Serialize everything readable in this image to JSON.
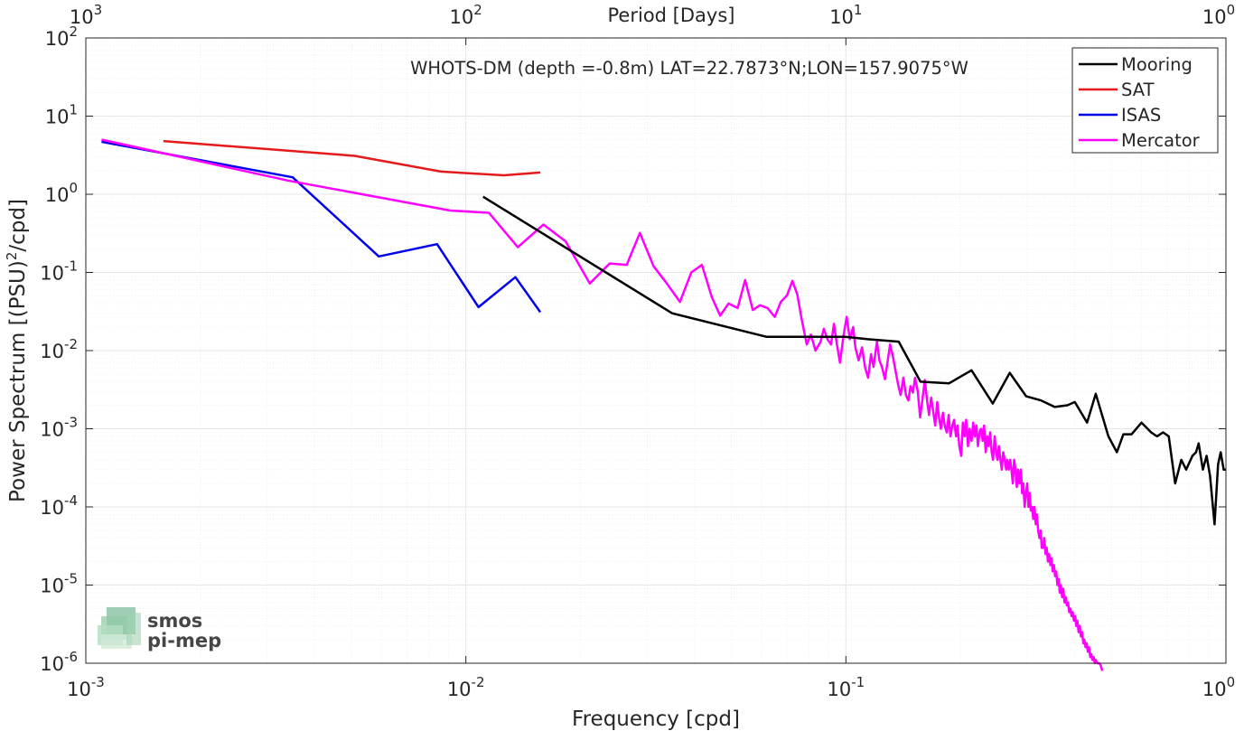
{
  "chart_data": {
    "type": "line",
    "title": "WHOTS-DM (depth =-0.8m) LAT=22.7873°N;LON=157.9075°W",
    "xlabel": "Frequency [cpd]",
    "ylabel_main": "Power Spectrum [(PSU)",
    "ylabel_sup": "2",
    "ylabel_end": "/cpd]",
    "top_axis_label": "Period [Days]",
    "x_scale": "log",
    "y_scale": "log",
    "xlim": [
      0.001,
      1
    ],
    "ylim": [
      1e-06,
      100
    ],
    "grid": true,
    "legend_position": "top-right",
    "x_ticks": [
      {
        "value": 0.001,
        "base": "10",
        "exp": "-3"
      },
      {
        "value": 0.01,
        "base": "10",
        "exp": "-2"
      },
      {
        "value": 0.1,
        "base": "10",
        "exp": "-1"
      },
      {
        "value": 1,
        "base": "10",
        "exp": "0"
      }
    ],
    "y_ticks": [
      {
        "value": 1e-06,
        "base": "10",
        "exp": "-6"
      },
      {
        "value": 1e-05,
        "base": "10",
        "exp": "-5"
      },
      {
        "value": 0.0001,
        "base": "10",
        "exp": "-4"
      },
      {
        "value": 0.001,
        "base": "10",
        "exp": "-3"
      },
      {
        "value": 0.01,
        "base": "10",
        "exp": "-2"
      },
      {
        "value": 0.1,
        "base": "10",
        "exp": "-1"
      },
      {
        "value": 1,
        "base": "10",
        "exp": "0"
      },
      {
        "value": 10,
        "base": "10",
        "exp": "1"
      },
      {
        "value": 100,
        "base": "10",
        "exp": "2"
      }
    ],
    "top_ticks": [
      {
        "value": 0.001,
        "base": "10",
        "exp": "3"
      },
      {
        "value": 0.01,
        "base": "10",
        "exp": "2"
      },
      {
        "value": 0.1,
        "base": "10",
        "exp": "1"
      },
      {
        "value": 1,
        "base": "10",
        "exp": "0"
      }
    ],
    "series": [
      {
        "name": "Mooring",
        "color": "#000000",
        "points": [
          [
            0.0111,
            0.93
          ],
          [
            0.0349,
            0.03
          ],
          [
            0.0619,
            0.015
          ],
          [
            0.0996,
            0.015
          ],
          [
            0.1142,
            0.014
          ],
          [
            0.1377,
            0.013
          ],
          [
            0.1571,
            0.004
          ],
          [
            0.1866,
            0.0038
          ],
          [
            0.2141,
            0.0056
          ],
          [
            0.2435,
            0.0021
          ],
          [
            0.2699,
            0.0052
          ],
          [
            0.2981,
            0.0026
          ],
          [
            0.3264,
            0.0023
          ],
          [
            0.3545,
            0.0019
          ],
          [
            0.3828,
            0.002
          ],
          [
            0.4003,
            0.0022
          ],
          [
            0.4311,
            0.0012
          ],
          [
            0.4545,
            0.0028
          ],
          [
            0.4907,
            0.0008
          ],
          [
            0.5166,
            0.0005
          ],
          [
            0.5373,
            0.00085
          ],
          [
            0.5648,
            0.00085
          ],
          [
            0.5996,
            0.0012
          ],
          [
            0.6355,
            0.0009
          ],
          [
            0.6587,
            0.0008
          ],
          [
            0.6832,
            0.0009
          ],
          [
            0.7071,
            0.0008
          ],
          [
            0.7351,
            0.0002
          ],
          [
            0.7629,
            0.0004
          ],
          [
            0.7861,
            0.0003
          ],
          [
            0.8162,
            0.00045
          ],
          [
            0.8344,
            0.0005
          ],
          [
            0.8478,
            0.00065
          ],
          [
            0.8695,
            0.0003
          ],
          [
            0.8894,
            0.00045
          ],
          [
            0.9084,
            0.00025
          ],
          [
            0.9332,
            6e-05
          ],
          [
            0.9533,
            0.00035
          ],
          [
            0.9687,
            0.0005
          ],
          [
            0.9866,
            0.0003
          ],
          [
            1.0,
            0.0003
          ]
        ]
      },
      {
        "name": "SAT",
        "color": "#e41a1c",
        "points": [
          [
            0.0016,
            4.8
          ],
          [
            0.0051,
            3.1
          ],
          [
            0.0086,
            1.95
          ],
          [
            0.0126,
            1.75
          ],
          [
            0.0157,
            1.9
          ]
        ]
      },
      {
        "name": "ISAS",
        "color": "#0000ee",
        "points": [
          [
            0.0011,
            4.7
          ],
          [
            0.0035,
            1.65
          ],
          [
            0.0059,
            0.16
          ],
          [
            0.0084,
            0.23
          ],
          [
            0.0108,
            0.036
          ],
          [
            0.0135,
            0.087
          ],
          [
            0.0157,
            0.031
          ]
        ]
      },
      {
        "name": "Mercator",
        "color": "#ff00ff",
        "points": [
          [
            0.0011,
            5.0
          ],
          [
            0.0034,
            1.5
          ],
          [
            0.0064,
            0.85
          ],
          [
            0.0091,
            0.62
          ],
          [
            0.0115,
            0.58
          ],
          [
            0.0137,
            0.21
          ],
          [
            0.016,
            0.41
          ],
          [
            0.0183,
            0.25
          ],
          [
            0.0212,
            0.072
          ],
          [
            0.0239,
            0.13
          ],
          [
            0.0265,
            0.125
          ],
          [
            0.0287,
            0.32
          ],
          [
            0.0312,
            0.12
          ],
          [
            0.0336,
            0.075
          ],
          [
            0.0366,
            0.042
          ],
          [
            0.0392,
            0.1
          ],
          [
            0.0418,
            0.125
          ],
          [
            0.0444,
            0.048
          ],
          [
            0.0467,
            0.028
          ],
          [
            0.0491,
            0.04
          ],
          [
            0.0519,
            0.035
          ],
          [
            0.0543,
            0.08
          ],
          [
            0.0569,
            0.033
          ],
          [
            0.0594,
            0.038
          ],
          [
            0.0622,
            0.035
          ],
          [
            0.065,
            0.027
          ],
          [
            0.0674,
            0.042
          ],
          [
            0.07,
            0.051
          ],
          [
            0.0723,
            0.078
          ],
          [
            0.0745,
            0.052
          ],
          [
            0.0763,
            0.027
          ],
          [
            0.0789,
            0.012
          ],
          [
            0.0809,
            0.016
          ],
          [
            0.0832,
            0.01
          ],
          [
            0.0858,
            0.013
          ],
          [
            0.0875,
            0.019
          ],
          [
            0.0894,
            0.014
          ],
          [
            0.0914,
            0.012
          ],
          [
            0.093,
            0.022
          ],
          [
            0.0947,
            0.012
          ],
          [
            0.0965,
            0.007
          ],
          [
            0.0987,
            0.016
          ],
          [
            0.1005,
            0.027
          ],
          [
            0.1024,
            0.014
          ],
          [
            0.1045,
            0.02
          ],
          [
            0.1059,
            0.011
          ],
          [
            0.108,
            0.0075
          ],
          [
            0.1103,
            0.011
          ],
          [
            0.1124,
            0.006
          ],
          [
            0.1144,
            0.0045
          ],
          [
            0.1165,
            0.009
          ],
          [
            0.1182,
            0.0062
          ],
          [
            0.1207,
            0.013
          ],
          [
            0.1225,
            0.0075
          ],
          [
            0.1244,
            0.0062
          ],
          [
            0.1267,
            0.0043
          ],
          [
            0.1289,
            0.0075
          ],
          [
            0.1307,
            0.012
          ],
          [
            0.1329,
            0.0085
          ],
          [
            0.1351,
            0.0055
          ],
          [
            0.1372,
            0.0037
          ],
          [
            0.1393,
            0.0027
          ],
          [
            0.1417,
            0.0045
          ],
          [
            0.1439,
            0.0027
          ],
          [
            0.146,
            0.0023
          ],
          [
            0.1479,
            0.0035
          ],
          [
            0.1501,
            0.0029
          ],
          [
            0.1521,
            0.0045
          ],
          [
            0.1546,
            0.003
          ],
          [
            0.1568,
            0.0014
          ],
          [
            0.1592,
            0.0025
          ],
          [
            0.1613,
            0.0042
          ],
          [
            0.1637,
            0.0022
          ],
          [
            0.1655,
            0.0015
          ],
          [
            0.1676,
            0.0025
          ],
          [
            0.1699,
            0.0016
          ],
          [
            0.1718,
            0.0011
          ],
          [
            0.1739,
            0.0022
          ],
          [
            0.1758,
            0.0014
          ],
          [
            0.1778,
            0.001
          ],
          [
            0.1801,
            0.0016
          ],
          [
            0.182,
            0.0011
          ],
          [
            0.1843,
            0.0009
          ],
          [
            0.1864,
            0.0015
          ],
          [
            0.1884,
            0.0008
          ],
          [
            0.1906,
            0.0011
          ],
          [
            0.1926,
            0.0013
          ],
          [
            0.1948,
            0.0008
          ],
          [
            0.1966,
            0.0011
          ],
          [
            0.1988,
            0.0006
          ],
          [
            0.2011,
            0.00045
          ],
          [
            0.2031,
            0.0012
          ],
          [
            0.2053,
            0.0008
          ],
          [
            0.2073,
            0.0013
          ],
          [
            0.2096,
            0.0006
          ],
          [
            0.2116,
            0.001
          ],
          [
            0.2141,
            0.0007
          ],
          [
            0.2163,
            0.0012
          ],
          [
            0.2184,
            0.0008
          ],
          [
            0.2205,
            0.0011
          ],
          [
            0.2226,
            0.0006
          ],
          [
            0.2248,
            0.0009
          ],
          [
            0.2268,
            0.001
          ],
          [
            0.2291,
            0.0007
          ],
          [
            0.231,
            0.0011
          ],
          [
            0.2333,
            0.0005
          ],
          [
            0.2355,
            0.0008
          ],
          [
            0.2374,
            0.0006
          ],
          [
            0.2397,
            0.0009
          ],
          [
            0.2419,
            0.0005
          ],
          [
            0.2439,
            0.0004
          ],
          [
            0.2463,
            0.0008
          ],
          [
            0.2484,
            0.0005
          ],
          [
            0.2506,
            0.0004
          ],
          [
            0.2527,
            0.0006
          ],
          [
            0.2551,
            0.0004
          ],
          [
            0.2572,
            0.0003
          ],
          [
            0.2594,
            0.0005
          ],
          [
            0.2617,
            0.0004
          ],
          [
            0.2641,
            0.0003
          ],
          [
            0.2661,
            0.0004
          ],
          [
            0.2684,
            0.0003
          ],
          [
            0.2706,
            0.0004
          ],
          [
            0.2727,
            0.0003
          ],
          [
            0.2749,
            0.0002
          ],
          [
            0.2772,
            0.0004
          ],
          [
            0.2795,
            0.0003
          ],
          [
            0.2816,
            0.00018
          ],
          [
            0.2839,
            0.0003
          ],
          [
            0.2863,
            0.0002
          ],
          [
            0.2886,
            0.0003
          ],
          [
            0.2908,
            0.00015
          ],
          [
            0.293,
            0.0002
          ],
          [
            0.2954,
            0.0001
          ],
          [
            0.2976,
            0.00015
          ],
          [
            0.3,
            0.0002
          ],
          [
            0.3022,
            0.0001
          ],
          [
            0.3045,
            0.00015
          ],
          [
            0.3066,
            9e-05
          ],
          [
            0.3089,
            0.0001
          ],
          [
            0.3111,
            7e-05
          ],
          [
            0.3135,
            0.0001
          ],
          [
            0.3159,
            6e-05
          ],
          [
            0.3181,
            8e-05
          ],
          [
            0.3206,
            5e-05
          ],
          [
            0.3229,
            4e-05
          ],
          [
            0.3254,
            5e-05
          ],
          [
            0.3276,
            3e-05
          ],
          [
            0.3302,
            3e-05
          ],
          [
            0.3325,
            4e-05
          ],
          [
            0.3351,
            2.5e-05
          ],
          [
            0.3375,
            3e-05
          ],
          [
            0.3401,
            2e-05
          ],
          [
            0.3426,
            2.5e-05
          ],
          [
            0.3452,
            1.8e-05
          ],
          [
            0.3475,
            2.2e-05
          ],
          [
            0.35,
            1.5e-05
          ],
          [
            0.3526,
            1.8e-05
          ],
          [
            0.3552,
            1.3e-05
          ],
          [
            0.3576,
            1.5e-05
          ],
          [
            0.3602,
            1e-05
          ],
          [
            0.3628,
            1.2e-05
          ],
          [
            0.3655,
            8e-06
          ],
          [
            0.3679,
            1e-05
          ],
          [
            0.3707,
            7e-06
          ],
          [
            0.3733,
            9e-06
          ],
          [
            0.376,
            6e-06
          ],
          [
            0.3787,
            7e-06
          ],
          [
            0.3814,
            5.5e-06
          ],
          [
            0.3842,
            6e-06
          ],
          [
            0.387,
            4.5e-06
          ],
          [
            0.3897,
            5e-06
          ],
          [
            0.3925,
            4e-06
          ],
          [
            0.3953,
            4.5e-06
          ],
          [
            0.3981,
            3.5e-06
          ],
          [
            0.401,
            4e-06
          ],
          [
            0.4038,
            3e-06
          ],
          [
            0.4067,
            3.5e-06
          ],
          [
            0.4095,
            2.5e-06
          ],
          [
            0.4124,
            3e-06
          ],
          [
            0.4153,
            2.2e-06
          ],
          [
            0.4183,
            2.5e-06
          ],
          [
            0.4213,
            1.8e-06
          ],
          [
            0.4242,
            2e-06
          ],
          [
            0.4272,
            1.6e-06
          ],
          [
            0.4302,
            1.8e-06
          ],
          [
            0.4333,
            1.4e-06
          ],
          [
            0.4363,
            1.6e-06
          ],
          [
            0.4394,
            1.2e-06
          ],
          [
            0.4425,
            1.3e-06
          ],
          [
            0.4456,
            1.1e-06
          ],
          [
            0.4487,
            1.2e-06
          ],
          [
            0.4519,
            1e-06
          ],
          [
            0.455,
            1.1e-06
          ],
          [
            0.4582,
            1e-06
          ],
          [
            0.4614,
            1e-06
          ],
          [
            0.4646,
            1e-06
          ],
          [
            0.4678,
            9.5e-07
          ],
          [
            0.471,
            8.5e-07
          ],
          [
            0.4727,
            8e-07
          ]
        ]
      }
    ]
  },
  "watermark": {
    "line1": "smos",
    "line2": "pi-mep"
  },
  "colors": {
    "axis_text": "#262626",
    "grid_major": "#e6e6e6",
    "grid_minor": "#f0f0f0",
    "watermark": "#8dc8a4"
  }
}
